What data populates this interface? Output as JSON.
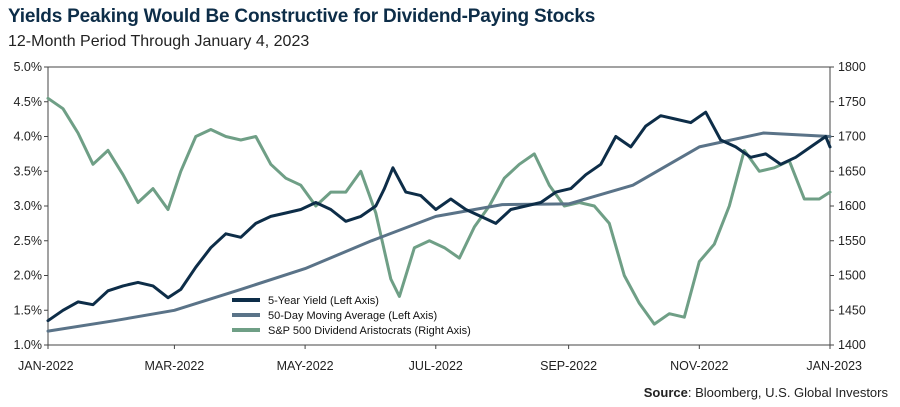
{
  "header": {
    "title": "Yields Peaking Would Be Constructive for Dividend-Paying Stocks",
    "subtitle": "12-Month Period Through January 4, 2023"
  },
  "footer": {
    "source_label": "Source",
    "source_text": ": Bloomberg, U.S. Global Investors"
  },
  "colors": {
    "yield": "#0d2d48",
    "ma": "#5a7388",
    "aristocrats": "#6f9f86"
  },
  "chart_data": {
    "type": "line",
    "x_tick_labels": [
      "JAN-2022",
      "MAR-2022",
      "MAY-2022",
      "JUL-2022",
      "SEP-2022",
      "NOV-2022",
      "JAN-2023"
    ],
    "x_tick_dates": [
      "2022-01-04",
      "2022-03-04",
      "2022-05-04",
      "2022-07-04",
      "2022-09-04",
      "2022-11-04",
      "2023-01-04"
    ],
    "left_axis": {
      "ylim": [
        1.0,
        5.0
      ],
      "tick_labels": [
        "1.0%",
        "1.5%",
        "2.0%",
        "2.5%",
        "3.0%",
        "3.5%",
        "4.0%",
        "4.5%",
        "5.0%"
      ],
      "tick_values": [
        1.0,
        1.5,
        2.0,
        2.5,
        3.0,
        3.5,
        4.0,
        4.5,
        5.0
      ]
    },
    "right_axis": {
      "ylim": [
        1400,
        1800
      ],
      "tick_labels": [
        "1400",
        "1450",
        "1500",
        "1550",
        "1600",
        "1650",
        "1700",
        "1750",
        "1800"
      ],
      "tick_values": [
        1400,
        1450,
        1500,
        1550,
        1600,
        1650,
        1700,
        1750,
        1800
      ]
    },
    "grid": false,
    "legend_position": "bottom-center",
    "series": [
      {
        "name": "5-Year Yield (Left Axis)",
        "axis": "left",
        "x": [
          "2022-01-04",
          "2022-01-11",
          "2022-01-18",
          "2022-01-25",
          "2022-02-01",
          "2022-02-08",
          "2022-02-15",
          "2022-02-22",
          "2022-03-01",
          "2022-03-07",
          "2022-03-14",
          "2022-03-21",
          "2022-03-28",
          "2022-04-04",
          "2022-04-11",
          "2022-04-18",
          "2022-04-25",
          "2022-05-02",
          "2022-05-09",
          "2022-05-16",
          "2022-05-23",
          "2022-05-30",
          "2022-06-06",
          "2022-06-10",
          "2022-06-14",
          "2022-06-20",
          "2022-06-27",
          "2022-07-04",
          "2022-07-11",
          "2022-07-18",
          "2022-07-25",
          "2022-08-01",
          "2022-08-08",
          "2022-08-15",
          "2022-08-22",
          "2022-08-29",
          "2022-09-05",
          "2022-09-12",
          "2022-09-19",
          "2022-09-26",
          "2022-10-03",
          "2022-10-10",
          "2022-10-17",
          "2022-10-24",
          "2022-10-31",
          "2022-11-07",
          "2022-11-14",
          "2022-11-21",
          "2022-11-28",
          "2022-12-05",
          "2022-12-12",
          "2022-12-19",
          "2022-12-26",
          "2023-01-02",
          "2023-01-04"
        ],
        "values": [
          1.35,
          1.5,
          1.62,
          1.58,
          1.78,
          1.85,
          1.9,
          1.85,
          1.68,
          1.8,
          2.12,
          2.4,
          2.6,
          2.55,
          2.75,
          2.85,
          2.9,
          2.95,
          3.05,
          2.95,
          2.78,
          2.85,
          3.0,
          3.25,
          3.55,
          3.2,
          3.15,
          2.95,
          3.1,
          2.95,
          2.85,
          2.75,
          2.95,
          3.0,
          3.05,
          3.2,
          3.25,
          3.45,
          3.6,
          4.0,
          3.85,
          4.15,
          4.3,
          4.25,
          4.2,
          4.35,
          3.95,
          3.85,
          3.7,
          3.75,
          3.6,
          3.7,
          3.85,
          4.0,
          3.85
        ]
      },
      {
        "name": "50-Day Moving Average (Left Axis)",
        "axis": "left",
        "x": [
          "2022-01-04",
          "2022-02-04",
          "2022-03-04",
          "2022-04-04",
          "2022-05-04",
          "2022-06-04",
          "2022-07-04",
          "2022-08-04",
          "2022-09-04",
          "2022-10-04",
          "2022-11-04",
          "2022-12-04",
          "2023-01-04"
        ],
        "values": [
          1.2,
          1.35,
          1.5,
          1.8,
          2.1,
          2.5,
          2.85,
          3.02,
          3.03,
          3.3,
          3.85,
          4.05,
          4.0
        ]
      },
      {
        "name": "S&P 500 Dividend Aristocrats (Right Axis)",
        "axis": "right",
        "x": [
          "2022-01-04",
          "2022-01-11",
          "2022-01-18",
          "2022-01-25",
          "2022-02-01",
          "2022-02-08",
          "2022-02-15",
          "2022-02-22",
          "2022-03-01",
          "2022-03-07",
          "2022-03-14",
          "2022-03-21",
          "2022-03-28",
          "2022-04-04",
          "2022-04-11",
          "2022-04-18",
          "2022-04-25",
          "2022-05-02",
          "2022-05-09",
          "2022-05-16",
          "2022-05-23",
          "2022-05-30",
          "2022-06-06",
          "2022-06-13",
          "2022-06-17",
          "2022-06-24",
          "2022-07-01",
          "2022-07-08",
          "2022-07-15",
          "2022-07-22",
          "2022-07-29",
          "2022-08-05",
          "2022-08-12",
          "2022-08-19",
          "2022-08-26",
          "2022-09-02",
          "2022-09-09",
          "2022-09-16",
          "2022-09-23",
          "2022-09-30",
          "2022-10-07",
          "2022-10-14",
          "2022-10-21",
          "2022-10-28",
          "2022-11-04",
          "2022-11-11",
          "2022-11-18",
          "2022-11-25",
          "2022-12-02",
          "2022-12-09",
          "2022-12-16",
          "2022-12-23",
          "2022-12-30",
          "2023-01-04"
        ],
        "values": [
          1755,
          1740,
          1705,
          1660,
          1680,
          1645,
          1605,
          1625,
          1595,
          1650,
          1700,
          1710,
          1700,
          1695,
          1700,
          1660,
          1640,
          1630,
          1600,
          1620,
          1620,
          1650,
          1590,
          1495,
          1470,
          1540,
          1550,
          1540,
          1525,
          1570,
          1600,
          1640,
          1660,
          1675,
          1630,
          1600,
          1605,
          1600,
          1575,
          1500,
          1460,
          1430,
          1445,
          1440,
          1520,
          1545,
          1600,
          1680,
          1650,
          1655,
          1665,
          1610,
          1610,
          1620
        ]
      }
    ],
    "legend": [
      {
        "label": "5-Year Yield (Left Axis)"
      },
      {
        "label": "50-Day Moving Average (Left Axis)"
      },
      {
        "label": "S&P 500 Dividend Aristocrats (Right Axis)"
      }
    ]
  }
}
